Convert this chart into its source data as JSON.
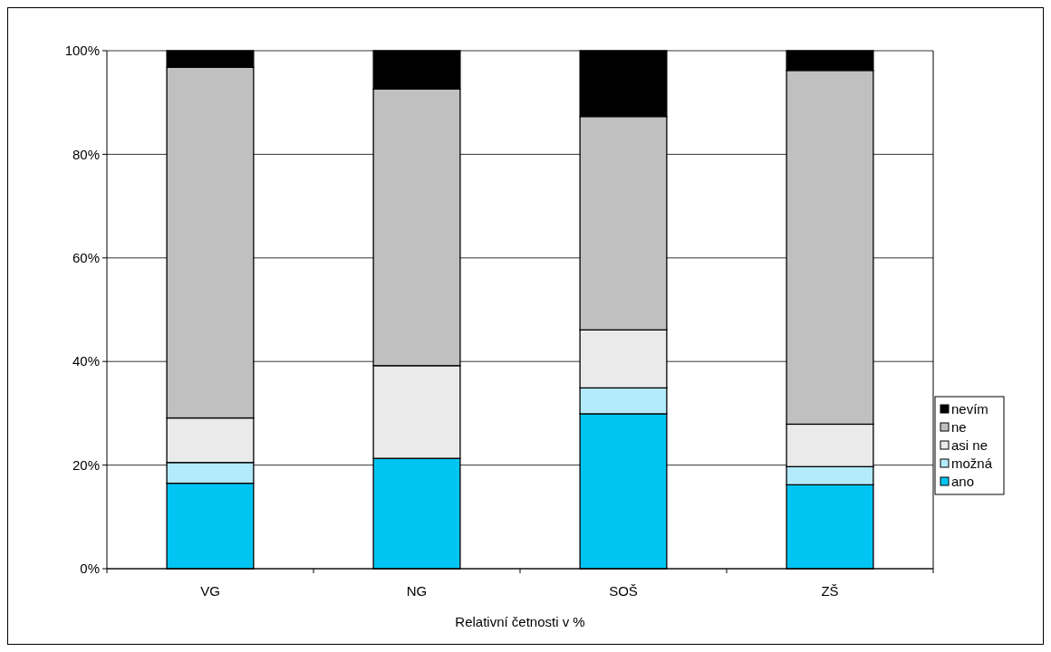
{
  "chart_data": {
    "type": "bar",
    "stacked": true,
    "xlabel": "Relativní četnosti v %",
    "categories": [
      "VG",
      "NG",
      "SOŠ",
      "ZŠ"
    ],
    "series": [
      {
        "name": "ano",
        "color": "#00c5f3",
        "values": [
          16.5,
          21.3,
          29.9,
          16.2
        ]
      },
      {
        "name": "možná",
        "color": "#b3ebfd",
        "values": [
          4.0,
          0,
          5.0,
          3.5
        ]
      },
      {
        "name": "asi ne",
        "color": "#eaeaea",
        "values": [
          8.6,
          17.9,
          11.2,
          8.2
        ]
      },
      {
        "name": "ne",
        "color": "#c0c0c0",
        "values": [
          67.7,
          53.4,
          41.2,
          68.3
        ]
      },
      {
        "name": "nevím",
        "color": "#000000",
        "values": [
          3.2,
          7.4,
          12.7,
          3.8
        ]
      }
    ],
    "ylim": [
      0,
      100
    ],
    "yticks": [
      {
        "value": 0,
        "label": "0%"
      },
      {
        "value": 20,
        "label": "20%"
      },
      {
        "value": 40,
        "label": "40%"
      },
      {
        "value": 60,
        "label": "60%"
      },
      {
        "value": 80,
        "label": "80%"
      },
      {
        "value": 100,
        "label": "100%"
      }
    ],
    "grid": "y",
    "legend": "right"
  }
}
